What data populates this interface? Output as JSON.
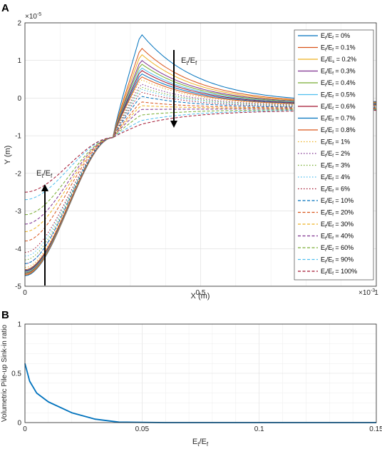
{
  "panels": {
    "a": "A",
    "b": "B"
  },
  "chart_data": [
    {
      "type": "line",
      "xlabel": "X (m)",
      "ylabel": "Y (m)",
      "x_exponent": "×10",
      "x_exponent_power": "-3",
      "y_exponent": "×10",
      "y_exponent_power": "-5",
      "xlim": [
        0,
        0.001
      ],
      "ylim": [
        -5e-05,
        2e-05
      ],
      "x_ticks": [
        "0",
        "0.5",
        "1"
      ],
      "y_ticks": [
        "2",
        "1",
        "0",
        "-1",
        "-2",
        "-3",
        "-4",
        "-5"
      ],
      "grid": true,
      "legend_position": "right",
      "annotations": {
        "up_label_main": "E",
        "up_label_sub1": "t",
        "up_label_sep": "/E",
        "up_label_sub2": "f",
        "down_label_main": "E",
        "down_label_sub1": "t",
        "down_label_sep": "/E",
        "down_label_sub2": "f"
      },
      "peak_x": 0.00033,
      "crossover_x": 0.00025,
      "series": [
        {
          "name": "= 0%",
          "sub2": "f",
          "style": "solid",
          "color": "#0072BD",
          "y0": -4.72e-05,
          "peak": 1.72e-05
        },
        {
          "name": "= 0.1%",
          "sub2": "f",
          "style": "solid",
          "color": "#D95319",
          "y0": -4.7e-05,
          "peak": 1.35e-05
        },
        {
          "name": "= 0.2%",
          "sub2": "s",
          "style": "solid",
          "color": "#EDB120",
          "y0": -4.68e-05,
          "peak": 1.18e-05
        },
        {
          "name": "= 0.3%",
          "sub2": "f",
          "style": "solid",
          "color": "#7E2F8E",
          "y0": -4.66e-05,
          "peak": 1.02e-05
        },
        {
          "name": "= 0.4%",
          "sub2": "f",
          "style": "solid",
          "color": "#77AC30",
          "y0": -4.64e-05,
          "peak": 9.2e-06
        },
        {
          "name": "= 0.5%",
          "sub2": "f",
          "style": "solid",
          "color": "#4DBEEE",
          "y0": -4.62e-05,
          "peak": 8.2e-06
        },
        {
          "name": "= 0.6%",
          "sub2": "f",
          "style": "solid",
          "color": "#A2142F",
          "y0": -4.6e-05,
          "peak": 7.5e-06
        },
        {
          "name": "= 0.7%",
          "sub2": "f",
          "style": "solid",
          "color": "#0072BD",
          "y0": -4.58e-05,
          "peak": 6.6e-06
        },
        {
          "name": "= 0.8%",
          "sub2": "f",
          "style": "solid",
          "color": "#D95319",
          "y0": -4.56e-05,
          "peak": 5.8e-06
        },
        {
          "name": "= 1%",
          "sub2": "f",
          "style": "dotted",
          "color": "#EDB120",
          "y0": -4.5e-05,
          "peak": 5e-06
        },
        {
          "name": "= 2%",
          "sub2": "f",
          "style": "dotted",
          "color": "#7E2F8E",
          "y0": -4.4e-05,
          "peak": 3.8e-06
        },
        {
          "name": "= 3%",
          "sub2": "f",
          "style": "dotted",
          "color": "#77AC30",
          "y0": -4.3e-05,
          "peak": 3e-06
        },
        {
          "name": "= 4%",
          "sub2": "f",
          "style": "dotted",
          "color": "#4DBEEE",
          "y0": -4.2e-05,
          "peak": 2.4e-06
        },
        {
          "name": "= 6%",
          "sub2": "f",
          "style": "dotted",
          "color": "#A2142F",
          "y0": -4.1e-05,
          "peak": 1.6e-06
        },
        {
          "name": "= 10%",
          "sub2": "f",
          "style": "dashed",
          "color": "#0072BD",
          "y0": -4.4e-05,
          "peak": 5e-07
        },
        {
          "name": "= 20%",
          "sub2": "f",
          "style": "dashed",
          "color": "#D95319",
          "y0": -3.8e-05,
          "peak": -1e-06
        },
        {
          "name": "= 30%",
          "sub2": "f",
          "style": "dashed",
          "color": "#EDB120",
          "y0": -3.55e-05,
          "peak": -2e-06
        },
        {
          "name": "= 40%",
          "sub2": "f",
          "style": "dashed",
          "color": "#7E2F8E",
          "y0": -3.35e-05,
          "peak": -3e-06
        },
        {
          "name": "= 60%",
          "sub2": "f",
          "style": "dashed",
          "color": "#77AC30",
          "y0": -3.1e-05,
          "peak": -4.5e-06
        },
        {
          "name": "= 90%",
          "sub2": "f",
          "style": "dashed",
          "color": "#4DBEEE",
          "y0": -2.7e-05,
          "peak": -6e-06
        },
        {
          "name": "= 100%",
          "sub2": "f",
          "style": "dashed",
          "color": "#A2142F",
          "y0": -2.5e-05,
          "peak": -7e-06
        }
      ]
    },
    {
      "type": "line",
      "xlabel_main": "E",
      "xlabel_sub1": "t",
      "xlabel_sep": "/E",
      "xlabel_sub2": "f",
      "ylabel": "Volumetric Pile-up Sink-in ratio",
      "xlim": [
        0,
        0.15
      ],
      "ylim": [
        0,
        1
      ],
      "x_ticks": [
        "0",
        "0.05",
        "0.1",
        "0.15"
      ],
      "y_ticks": [
        "1",
        "0.5",
        "0"
      ],
      "grid": true,
      "series": [
        {
          "color": "#0072BD",
          "x": [
            0,
            0.002,
            0.005,
            0.01,
            0.02,
            0.03,
            0.04,
            0.06,
            0.1,
            0.15
          ],
          "y": [
            0.6,
            0.42,
            0.3,
            0.21,
            0.1,
            0.035,
            0.005,
            0.0,
            0.0,
            0.0
          ]
        }
      ]
    }
  ]
}
